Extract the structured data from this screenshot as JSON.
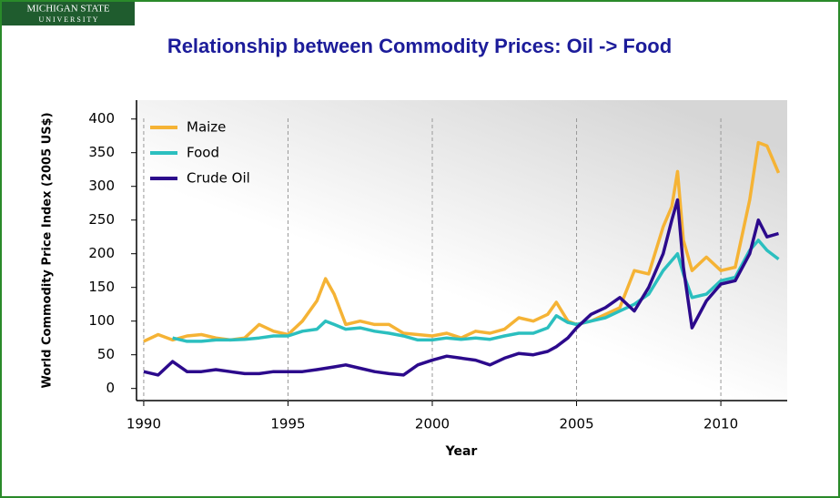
{
  "logo": {
    "line1": "MICHIGAN STATE",
    "line2": "U N I V E R S I T Y"
  },
  "chart_data": {
    "type": "line",
    "title": "Relationship between Commodity Prices: Oil -> Food",
    "x_label": "Year",
    "y_label": "World Commodity Price Index (2005 US$)",
    "x": [
      1990,
      1990.5,
      1991,
      1991.5,
      1992,
      1992.5,
      1993,
      1993.5,
      1994,
      1994.5,
      1995,
      1995.5,
      1996,
      1996.3,
      1996.6,
      1997,
      1997.5,
      1998,
      1998.5,
      1999,
      1999.5,
      2000,
      2000.5,
      2001,
      2001.5,
      2002,
      2002.5,
      2003,
      2003.5,
      2004,
      2004.3,
      2004.7,
      2005,
      2005.5,
      2006,
      2006.5,
      2007,
      2007.5,
      2008,
      2008.3,
      2008.5,
      2008.7,
      2009,
      2009.5,
      2010,
      2010.5,
      2011,
      2011.3,
      2011.6,
      2012
    ],
    "series": [
      {
        "name": "Maize",
        "color": "#f5b335",
        "values": [
          70,
          80,
          72,
          78,
          80,
          75,
          72,
          75,
          95,
          85,
          80,
          100,
          130,
          163,
          140,
          95,
          100,
          95,
          95,
          82,
          80,
          78,
          82,
          75,
          85,
          82,
          88,
          105,
          100,
          110,
          128,
          100,
          95,
          100,
          110,
          120,
          175,
          170,
          240,
          270,
          322,
          220,
          175,
          195,
          175,
          180,
          280,
          365,
          360,
          320
        ]
      },
      {
        "name": "Food",
        "color": "#2bbfbf",
        "values": [
          null,
          null,
          75,
          70,
          70,
          72,
          72,
          73,
          75,
          78,
          78,
          85,
          88,
          100,
          95,
          88,
          90,
          85,
          82,
          78,
          72,
          72,
          75,
          73,
          75,
          73,
          78,
          82,
          82,
          90,
          108,
          98,
          95,
          100,
          105,
          115,
          125,
          140,
          175,
          190,
          200,
          170,
          135,
          140,
          160,
          165,
          205,
          220,
          205,
          192
        ]
      },
      {
        "name": "Crude Oil",
        "color": "#2c0a8c",
        "values": [
          25,
          20,
          40,
          25,
          25,
          28,
          25,
          22,
          22,
          25,
          25,
          25,
          28,
          30,
          32,
          35,
          30,
          25,
          22,
          20,
          35,
          42,
          48,
          45,
          42,
          35,
          45,
          52,
          50,
          55,
          62,
          75,
          90,
          110,
          120,
          135,
          115,
          150,
          200,
          250,
          280,
          180,
          90,
          130,
          155,
          160,
          200,
          250,
          225,
          230
        ]
      }
    ],
    "xlim": [
      1989.75,
      2012.3
    ],
    "ylim": [
      -18,
      428
    ],
    "xticks": [
      1990,
      1995,
      2000,
      2005,
      2010
    ],
    "yticks": [
      0,
      50,
      100,
      150,
      200,
      250,
      300,
      350,
      400
    ],
    "grid": true,
    "legend": "upper left"
  }
}
